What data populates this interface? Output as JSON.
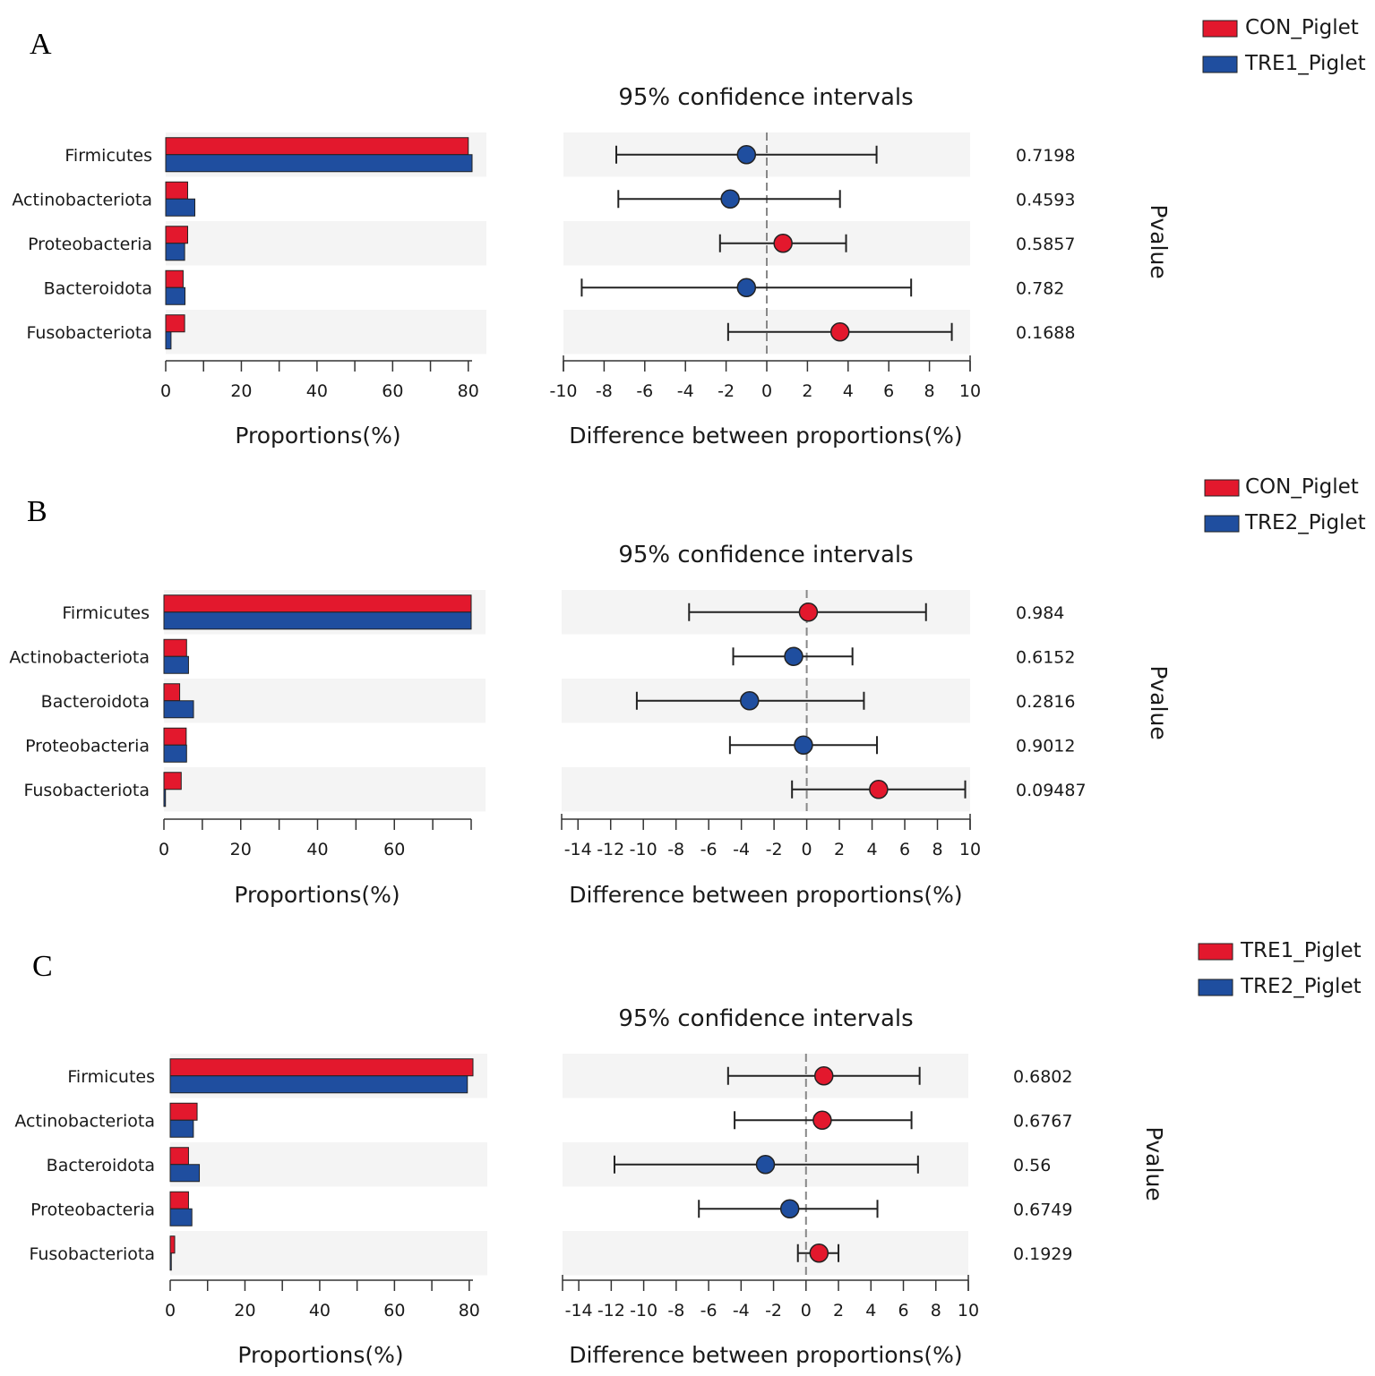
{
  "colors": {
    "group1": "#e3182d",
    "group2": "#1f4e9f",
    "band": "#f4f4f4",
    "axis": "#333333",
    "dash": "#888888"
  },
  "chart_data": [
    {
      "type": "bar",
      "panel": "A",
      "title": "95% confidence intervals",
      "legend": [
        "CON_Piglet",
        "TRE1_Piglet"
      ],
      "categories": [
        "Firmicutes",
        "Actinobacteriota",
        "Proteobacteria",
        "Bacteroidota",
        "Fusobacteriota"
      ],
      "proportions": {
        "xlabel": "Proportions(%)",
        "xlim": [
          0,
          81
        ],
        "xticks": [
          0,
          20,
          40,
          60,
          80
        ],
        "series": [
          {
            "name": "CON_Piglet",
            "values": [
              80.0,
              5.8,
              5.8,
              4.6,
              5.0
            ]
          },
          {
            "name": "TRE1_Piglet",
            "values": [
              81.0,
              7.7,
              5.0,
              5.1,
              1.4
            ]
          }
        ]
      },
      "difference": {
        "xlabel": "Difference between proportions(%)",
        "xlim": [
          -10,
          10
        ],
        "xticks": [
          -10,
          -8,
          -6,
          -4,
          -2,
          0,
          2,
          4,
          6,
          8,
          10
        ],
        "estimate": [
          -1.0,
          -1.8,
          0.8,
          -1.0,
          3.6
        ],
        "ci_low": [
          -7.4,
          -7.3,
          -2.3,
          -9.1,
          -1.9
        ],
        "ci_high": [
          5.4,
          3.6,
          3.9,
          7.1,
          9.1
        ],
        "favors": [
          "TRE1_Piglet",
          "TRE1_Piglet",
          "CON_Piglet",
          "TRE1_Piglet",
          "CON_Piglet"
        ]
      },
      "pvalues": [
        "0.7198",
        "0.4593",
        "0.5857",
        "0.782",
        "0.1688"
      ],
      "pvalue_label": "Pvalue"
    },
    {
      "type": "bar",
      "panel": "B",
      "title": "95% confidence intervals",
      "legend": [
        "CON_Piglet",
        "TRE2_Piglet"
      ],
      "categories": [
        "Firmicutes",
        "Actinobacteriota",
        "Bacteroidota",
        "Proteobacteria",
        "Fusobacteriota"
      ],
      "proportions": {
        "xlabel": "Proportions(%)",
        "xlim": [
          0,
          80
        ],
        "xticks": [
          0,
          20,
          40,
          60
        ],
        "series": [
          {
            "name": "CON_Piglet",
            "values": [
              80.0,
              5.9,
              4.1,
              5.8,
              4.5
            ]
          },
          {
            "name": "TRE2_Piglet",
            "values": [
              80.0,
              6.4,
              7.7,
              5.9,
              0.4
            ]
          }
        ]
      },
      "difference": {
        "xlabel": "Difference between proportions(%)",
        "xlim": [
          -15,
          10
        ],
        "xticks": [
          -14,
          -12,
          -10,
          -8,
          -6,
          -4,
          -2,
          0,
          2,
          4,
          6,
          8,
          10
        ],
        "estimate": [
          0.1,
          -0.8,
          -3.5,
          -0.2,
          4.4
        ],
        "ci_low": [
          -7.2,
          -4.5,
          -10.4,
          -4.7,
          -0.9
        ],
        "ci_high": [
          7.3,
          2.8,
          3.5,
          4.3,
          9.7
        ],
        "favors": [
          "CON_Piglet",
          "TRE2_Piglet",
          "TRE2_Piglet",
          "TRE2_Piglet",
          "CON_Piglet"
        ]
      },
      "pvalues": [
        "0.984",
        "0.6152",
        "0.2816",
        "0.9012",
        "0.09487"
      ],
      "pvalue_label": "Pvalue"
    },
    {
      "type": "bar",
      "panel": "C",
      "title": "95% confidence intervals",
      "legend": [
        "TRE1_Piglet",
        "TRE2_Piglet"
      ],
      "categories": [
        "Firmicutes",
        "Actinobacteriota",
        "Bacteroidota",
        "Proteobacteria",
        "Fusobacteriota"
      ],
      "proportions": {
        "xlabel": "Proportions(%)",
        "xlim": [
          0,
          81
        ],
        "xticks": [
          0,
          20,
          40,
          60,
          80
        ],
        "series": [
          {
            "name": "TRE1_Piglet",
            "values": [
              81.0,
              7.2,
              4.9,
              4.9,
              1.2
            ]
          },
          {
            "name": "TRE2_Piglet",
            "values": [
              79.5,
              6.2,
              7.8,
              5.8,
              0.3
            ]
          }
        ]
      },
      "difference": {
        "xlabel": "Difference between proportions(%)",
        "xlim": [
          -15,
          10
        ],
        "xticks": [
          -14,
          -12,
          -10,
          -8,
          -6,
          -4,
          -2,
          0,
          2,
          4,
          6,
          8,
          10
        ],
        "estimate": [
          1.1,
          1.0,
          -2.5,
          -1.0,
          0.8
        ],
        "ci_low": [
          -4.8,
          -4.4,
          -11.8,
          -6.6,
          -0.5
        ],
        "ci_high": [
          7.0,
          6.5,
          6.9,
          4.4,
          2.0
        ],
        "favors": [
          "TRE1_Piglet",
          "TRE1_Piglet",
          "TRE2_Piglet",
          "TRE2_Piglet",
          "TRE1_Piglet"
        ]
      },
      "pvalues": [
        "0.6802",
        "0.6767",
        "0.56",
        "0.6749",
        "0.1929"
      ],
      "pvalue_label": "Pvalue"
    }
  ]
}
